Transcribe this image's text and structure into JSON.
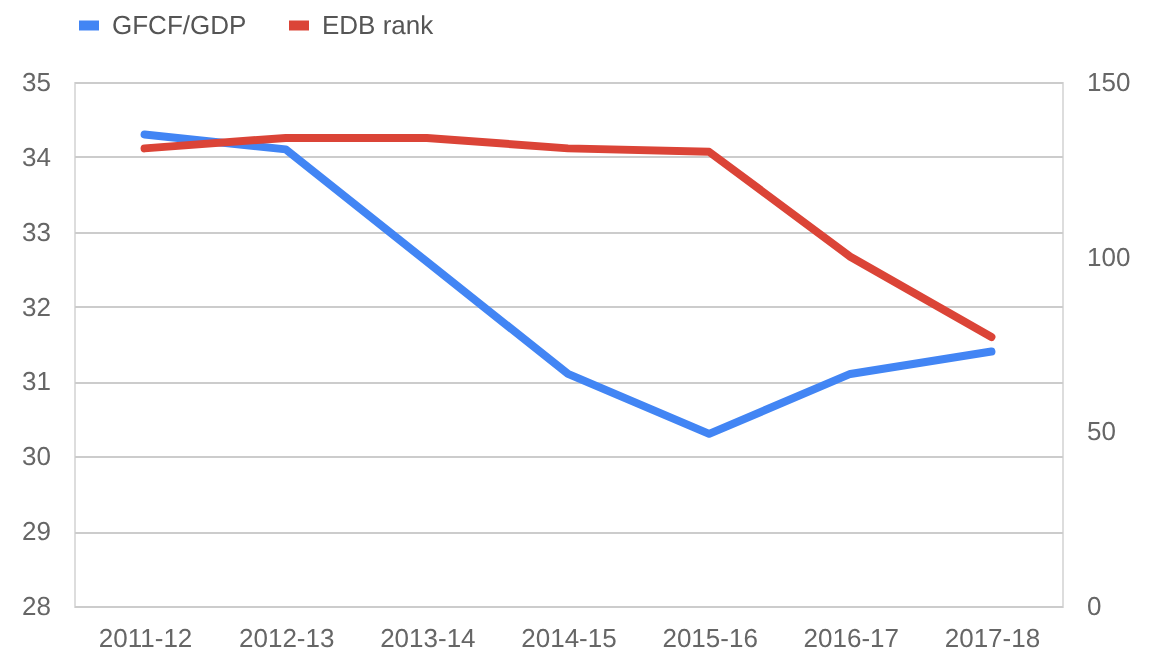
{
  "chart_data": {
    "type": "line",
    "categories": [
      "2011-12",
      "2012-13",
      "2013-14",
      "2014-15",
      "2015-16",
      "2016-17",
      "2017-18"
    ],
    "series": [
      {
        "name": "GFCF/GDP",
        "color": "#4285f4",
        "values": [
          34.3,
          34.1,
          32.6,
          31.1,
          30.3,
          31.1,
          31.4
        ]
      },
      {
        "name": "EDB rank",
        "color": "#db4437",
        "axis": "y2",
        "values": [
          131,
          134,
          134,
          131,
          130,
          100,
          77
        ]
      }
    ],
    "ylim": [
      28,
      35
    ],
    "yticks": [
      28,
      29,
      30,
      31,
      32,
      33,
      34,
      35
    ],
    "y2lim": [
      0,
      150
    ],
    "y2ticks": [
      0,
      50,
      100,
      150
    ],
    "grid": "y",
    "legend": "top",
    "marker": "none",
    "line_style": "solid"
  }
}
